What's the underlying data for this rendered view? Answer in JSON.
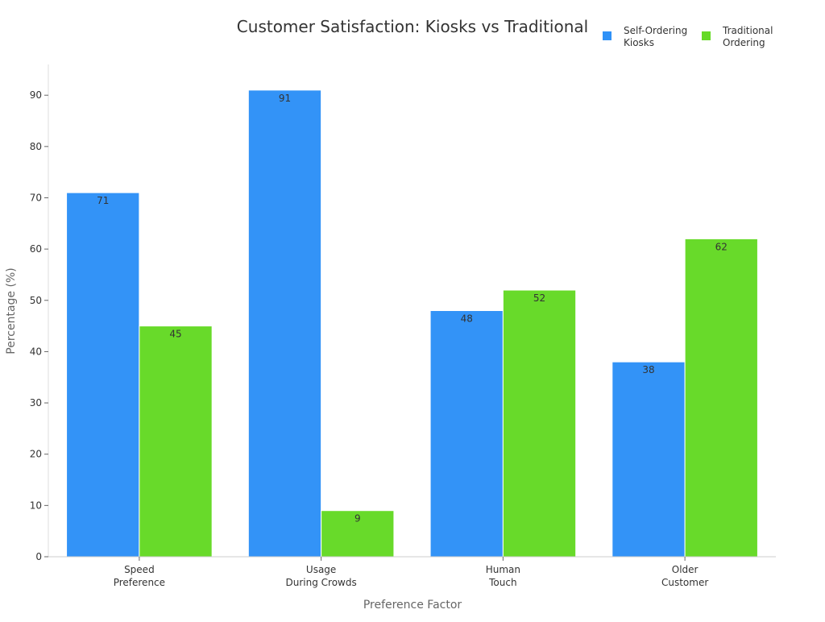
{
  "chart_data": {
    "type": "bar",
    "title": "Customer Satisfaction: Kiosks vs Traditional",
    "xlabel": "Preference Factor",
    "ylabel": "Percentage (%)",
    "categories": [
      [
        "Speed",
        "Preference"
      ],
      [
        "Usage",
        "During Crowds"
      ],
      [
        "Human",
        "Touch"
      ],
      [
        "Older",
        "Customer"
      ]
    ],
    "series": [
      {
        "name": [
          "Self-Ordering",
          "Kiosks"
        ],
        "color": "#2F91F7",
        "values": [
          71,
          91,
          48,
          38
        ]
      },
      {
        "name": [
          "Traditional",
          "Ordering"
        ],
        "color": "#66DA26",
        "values": [
          45,
          9,
          52,
          62
        ]
      }
    ],
    "ylim": [
      0,
      96
    ],
    "yticks": [
      0,
      10,
      20,
      30,
      40,
      50,
      60,
      70,
      80,
      90
    ],
    "grid": false,
    "legend": "top-right",
    "data_labels": true
  }
}
